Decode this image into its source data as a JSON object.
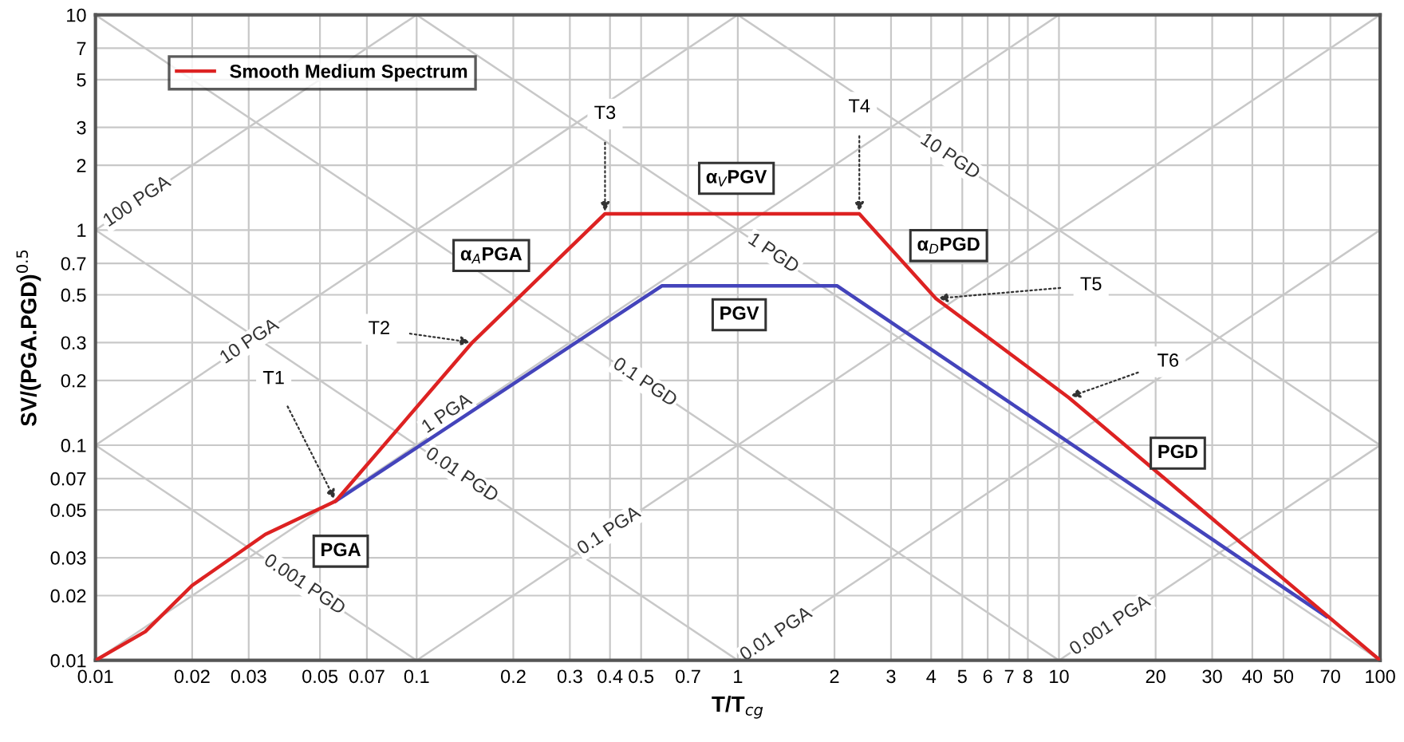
{
  "chart_data": {
    "type": "line",
    "xlabel": "T/T$_{cg}$",
    "ylabel": "SV/(PGA.PGD)$^{0.5}$",
    "log": "xy",
    "grid": true,
    "legend": "top left",
    "xlim": [
      0.01,
      100
    ],
    "ylim": [
      0.01,
      10
    ],
    "xticks": [
      0.01,
      0.02,
      0.03,
      0.05,
      0.07,
      0.1,
      0.2,
      0.3,
      0.4,
      0.5,
      0.7,
      1,
      2,
      3,
      4,
      5,
      6,
      7,
      8,
      10,
      20,
      30,
      40,
      50,
      70,
      100
    ],
    "yticks": [
      0.01,
      0.02,
      0.03,
      0.05,
      0.07,
      0.1,
      0.2,
      0.3,
      0.5,
      0.7,
      1,
      2,
      3,
      5,
      7,
      10
    ],
    "series": [
      {
        "name": "100 PGA",
        "color": "#c8c8c8",
        "x": [
          0.01,
          0.1
        ],
        "values": [
          1,
          10
        ]
      },
      {
        "name": "10 PGA",
        "color": "#c8c8c8",
        "x": [
          0.01,
          1
        ],
        "values": [
          0.1,
          10
        ]
      },
      {
        "name": "1 PGA",
        "color": "#c8c8c8",
        "x": [
          0.01,
          10
        ],
        "values": [
          0.01,
          10
        ]
      },
      {
        "name": "0.1 PGA",
        "color": "#c8c8c8",
        "x": [
          0.1,
          100
        ],
        "values": [
          0.01,
          10
        ]
      },
      {
        "name": "0.01 PGA",
        "color": "#c8c8c8",
        "x": [
          1,
          100
        ],
        "values": [
          0.01,
          1
        ]
      },
      {
        "name": "0.001 PGA",
        "color": "#c8c8c8",
        "x": [
          10,
          100
        ],
        "values": [
          0.01,
          0.1
        ]
      },
      {
        "name": "10 PGD",
        "color": "#c8c8c8",
        "x": [
          1,
          100
        ],
        "values": [
          10,
          0.1
        ]
      },
      {
        "name": "1 PGD",
        "color": "#c8c8c8",
        "x": [
          0.1,
          100
        ],
        "values": [
          10,
          0.01
        ]
      },
      {
        "name": "0.1 PGD",
        "color": "#c8c8c8",
        "x": [
          0.01,
          10
        ],
        "values": [
          10,
          0.01
        ]
      },
      {
        "name": "0.01 PGD",
        "color": "#c8c8c8",
        "x": [
          0.01,
          1
        ],
        "values": [
          1,
          0.01
        ]
      },
      {
        "name": "0.001 PGD",
        "color": "#c8c8c8",
        "x": [
          0.01,
          0.1
        ],
        "values": [
          0.1,
          0.01
        ]
      },
      {
        "color": "#4444bb",
        "x": [
          0.056,
          0.58,
          2.04,
          68
        ],
        "values": [
          0.055,
          0.55,
          0.55,
          0.016
        ]
      },
      {
        "name": "Smooth Medium Spectrum",
        "color": "#dd2222",
        "x": [
          0.01,
          0.0143,
          0.02,
          0.0338,
          0.056,
          0.149,
          0.386,
          2.39,
          4.14,
          10.7,
          100
        ],
        "values": [
          0.01,
          0.0136,
          0.0223,
          0.0385,
          0.055,
          0.3,
          1.19,
          1.19,
          0.48,
          0.167,
          0.01
        ]
      }
    ],
    "annotations": [
      {
        "text": "T1",
        "x": 0.056,
        "y": 0.055
      },
      {
        "text": "T2",
        "x": 0.149,
        "y": 0.3
      },
      {
        "text": "T3",
        "x": 0.386,
        "y": 1.19
      },
      {
        "text": "T4",
        "x": 2.39,
        "y": 1.19
      },
      {
        "text": "T5",
        "x": 4.14,
        "y": 0.48
      },
      {
        "text": "T6",
        "x": 10.7,
        "y": 0.167
      },
      {
        "text": "α$_{A}$PGA",
        "x": 0.25,
        "y": 0.63
      },
      {
        "text": "α$_{V}$PGV",
        "x": 0.99,
        "y": 1.19
      },
      {
        "text": "α$_{D}$PGD",
        "x": 3.3,
        "y": 0.7
      },
      {
        "text": "PGV",
        "x": 1.01,
        "y": 0.55
      },
      {
        "text": "PGA",
        "x": 0.045,
        "y": 0.047
      },
      {
        "text": "PGD",
        "x": 20,
        "y": 0.076
      }
    ]
  }
}
